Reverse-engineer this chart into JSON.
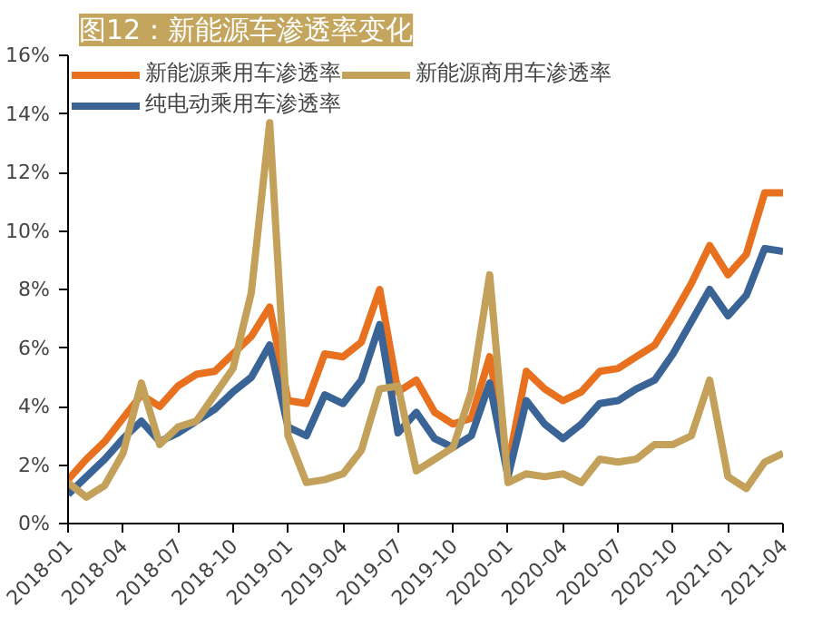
{
  "chart_data": {
    "type": "line",
    "title": "图12：新能源车渗透率变化",
    "x": [
      "2018-01",
      "2018-02",
      "2018-03",
      "2018-04",
      "2018-05",
      "2018-06",
      "2018-07",
      "2018-08",
      "2018-09",
      "2018-10",
      "2018-11",
      "2018-12",
      "2019-01",
      "2019-02",
      "2019-03",
      "2019-04",
      "2019-05",
      "2019-06",
      "2019-07",
      "2019-08",
      "2019-09",
      "2019-10",
      "2019-11",
      "2019-12",
      "2020-01",
      "2020-02",
      "2020-03",
      "2020-04",
      "2020-05",
      "2020-06",
      "2020-07",
      "2020-08",
      "2020-09",
      "2020-10",
      "2020-11",
      "2020-12",
      "2021-01",
      "2021-02",
      "2021-03",
      "2021-04"
    ],
    "series": [
      {
        "name": "新能源乘用车渗透率",
        "color": "#e8711f",
        "values": [
          1.5,
          2.2,
          2.8,
          3.6,
          4.4,
          4.0,
          4.7,
          5.1,
          5.2,
          5.8,
          6.4,
          7.4,
          4.2,
          4.1,
          5.8,
          5.7,
          6.2,
          8.0,
          4.5,
          4.9,
          3.8,
          3.4,
          3.6,
          5.7,
          2.0,
          5.2,
          4.6,
          4.2,
          4.5,
          5.2,
          5.3,
          5.7,
          6.1,
          7.1,
          8.2,
          9.5,
          8.5,
          9.2,
          11.3,
          11.3
        ]
      },
      {
        "name": "纯电动乘用车渗透率",
        "color": "#3a6496",
        "values": [
          1.0,
          1.6,
          2.2,
          2.9,
          3.5,
          2.8,
          3.1,
          3.5,
          3.9,
          4.5,
          5.0,
          6.1,
          3.3,
          3.0,
          4.4,
          4.1,
          4.9,
          6.8,
          3.1,
          3.8,
          2.9,
          2.6,
          3.0,
          4.8,
          1.6,
          4.2,
          3.4,
          2.9,
          3.4,
          4.1,
          4.2,
          4.6,
          4.9,
          5.8,
          6.9,
          8.0,
          7.1,
          7.8,
          9.4,
          9.3
        ]
      },
      {
        "name": "新能源商用车渗透率",
        "color": "#c4a15a",
        "values": [
          1.4,
          0.9,
          1.3,
          2.4,
          4.8,
          2.7,
          3.3,
          3.5,
          4.4,
          5.3,
          7.9,
          13.7,
          3.0,
          1.4,
          1.5,
          1.7,
          2.5,
          4.6,
          4.7,
          1.8,
          2.2,
          2.6,
          4.5,
          8.5,
          1.4,
          1.7,
          1.6,
          1.7,
          1.4,
          2.2,
          2.1,
          2.2,
          2.7,
          2.7,
          3.0,
          4.9,
          1.6,
          1.2,
          2.1,
          2.4
        ]
      }
    ],
    "ylim": [
      0,
      16
    ],
    "yticks": [
      {
        "value": 0,
        "label": "0%"
      },
      {
        "value": 2,
        "label": "2%"
      },
      {
        "value": 4,
        "label": "4%"
      },
      {
        "value": 6,
        "label": "6%"
      },
      {
        "value": 8,
        "label": "8%"
      },
      {
        "value": 10,
        "label": "10%"
      },
      {
        "value": 12,
        "label": "12%"
      },
      {
        "value": 14,
        "label": "14%"
      },
      {
        "value": 16,
        "label": "16%"
      }
    ],
    "xlim": [
      "2018-01",
      "2021-04"
    ],
    "xticks": [
      "2018-01",
      "2018-04",
      "2018-07",
      "2018-10",
      "2019-01",
      "2019-04",
      "2019-07",
      "2019-10",
      "2020-01",
      "2020-04",
      "2020-07",
      "2020-10",
      "2021-01",
      "2021-04"
    ],
    "grid": false,
    "legend": "top left",
    "marker": "none",
    "line_style": "solid"
  }
}
